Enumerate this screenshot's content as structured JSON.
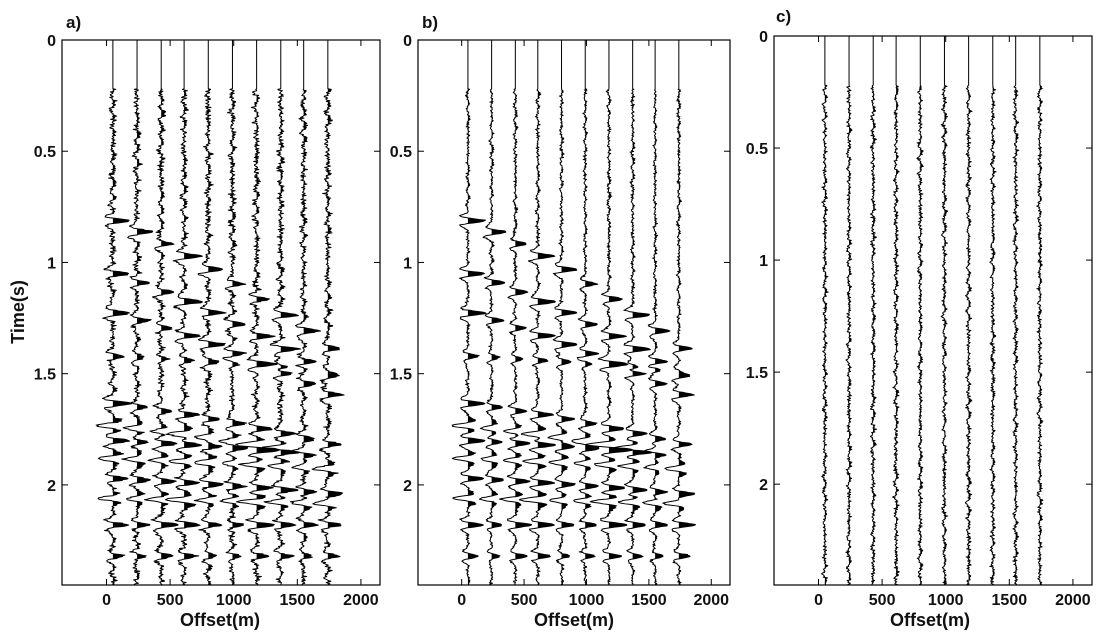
{
  "chart_data": [
    {
      "type": "seismic-wiggle",
      "panel_label": "a)",
      "xlabel": "Offset(m)",
      "ylabel": "Time(s)",
      "xlim": [
        -350,
        2150
      ],
      "ylim": [
        2.45,
        0
      ],
      "xticks": [
        {
          "value": 0,
          "label": "0"
        },
        {
          "value": 500,
          "label": "500"
        },
        {
          "value": 1000,
          "label": "1000"
        },
        {
          "value": 1500,
          "label": "1500"
        },
        {
          "value": 2000,
          "label": "2000"
        }
      ],
      "yticks": [
        {
          "value": 0,
          "label": "0"
        },
        {
          "value": 0.5,
          "label": "0.5"
        },
        {
          "value": 1,
          "label": "1"
        },
        {
          "value": 1.5,
          "label": "1.5"
        },
        {
          "value": 2,
          "label": "2"
        }
      ],
      "trace_offsets": [
        50,
        240,
        430,
        610,
        800,
        990,
        1180,
        1370,
        1550,
        1740
      ],
      "reflections": [
        {
          "t0": 0.8,
          "moveout": 0.00025,
          "amp": 1.0,
          "polarity": 1
        },
        {
          "t0": 1.04,
          "moveout": 0.0002,
          "amp": 1.0,
          "polarity": 1
        },
        {
          "t0": 1.22,
          "moveout": 0.00016,
          "amp": 1.0,
          "polarity": 1
        },
        {
          "t0": 1.42,
          "moveout": 3e-05,
          "amp": 0.6,
          "polarity": 1
        },
        {
          "t0": 1.63,
          "moveout": 8e-05,
          "amp": 0.9,
          "polarity": 1
        },
        {
          "t0": 1.73,
          "moveout": 6e-05,
          "amp": 0.9,
          "polarity": -1
        },
        {
          "t0": 1.8,
          "moveout": 3e-05,
          "amp": 1.0,
          "polarity": 1
        },
        {
          "t0": 1.88,
          "moveout": 2e-05,
          "amp": 0.9,
          "polarity": -1
        },
        {
          "t0": 1.97,
          "moveout": 3e-05,
          "amp": 1.0,
          "polarity": 1
        },
        {
          "t0": 2.06,
          "moveout": 1e-05,
          "amp": 1.0,
          "polarity": -1
        },
        {
          "t0": 2.18,
          "moveout": 0.0,
          "amp": 1.0,
          "polarity": 1
        },
        {
          "t0": 2.32,
          "moveout": 0.0,
          "amp": 0.7,
          "polarity": 1
        }
      ],
      "noise_level": 0.22,
      "signal_start": 0.22
    },
    {
      "type": "seismic-wiggle",
      "panel_label": "b)",
      "xlabel": "Offset(m)",
      "ylabel": "",
      "xlim": [
        -350,
        2150
      ],
      "ylim": [
        2.45,
        0
      ],
      "xticks": [
        {
          "value": 0,
          "label": "0"
        },
        {
          "value": 500,
          "label": "500"
        },
        {
          "value": 1000,
          "label": "1000"
        },
        {
          "value": 1500,
          "label": "1500"
        },
        {
          "value": 2000,
          "label": "2000"
        }
      ],
      "yticks": [
        {
          "value": 0,
          "label": "0"
        },
        {
          "value": 0.5,
          "label": "0.5"
        },
        {
          "value": 1,
          "label": "1"
        },
        {
          "value": 1.5,
          "label": "1.5"
        },
        {
          "value": 2,
          "label": "2"
        }
      ],
      "trace_offsets": [
        50,
        240,
        430,
        610,
        800,
        990,
        1180,
        1370,
        1550,
        1740
      ],
      "reflections": [
        {
          "t0": 0.8,
          "moveout": 0.00025,
          "amp": 1.0,
          "polarity": 1
        },
        {
          "t0": 1.04,
          "moveout": 0.0002,
          "amp": 1.0,
          "polarity": 1
        },
        {
          "t0": 1.22,
          "moveout": 0.00016,
          "amp": 1.0,
          "polarity": 1
        },
        {
          "t0": 1.42,
          "moveout": 3e-05,
          "amp": 0.6,
          "polarity": 1
        },
        {
          "t0": 1.63,
          "moveout": 8e-05,
          "amp": 0.9,
          "polarity": 1
        },
        {
          "t0": 1.73,
          "moveout": 6e-05,
          "amp": 0.9,
          "polarity": -1
        },
        {
          "t0": 1.8,
          "moveout": 3e-05,
          "amp": 1.0,
          "polarity": 1
        },
        {
          "t0": 1.88,
          "moveout": 2e-05,
          "amp": 0.9,
          "polarity": -1
        },
        {
          "t0": 1.97,
          "moveout": 3e-05,
          "amp": 1.0,
          "polarity": 1
        },
        {
          "t0": 2.06,
          "moveout": 1e-05,
          "amp": 1.0,
          "polarity": -1
        },
        {
          "t0": 2.18,
          "moveout": 0.0,
          "amp": 1.0,
          "polarity": 1
        },
        {
          "t0": 2.32,
          "moveout": 0.0,
          "amp": 0.7,
          "polarity": 1
        }
      ],
      "noise_level": 0.12,
      "signal_start": 0.22
    },
    {
      "type": "seismic-wiggle",
      "panel_label": "c)",
      "xlabel": "Offset(m)",
      "ylabel": "",
      "xlim": [
        -350,
        2150
      ],
      "ylim": [
        2.45,
        0
      ],
      "xticks": [
        {
          "value": 0,
          "label": "0"
        },
        {
          "value": 500,
          "label": "500"
        },
        {
          "value": 1000,
          "label": "1000"
        },
        {
          "value": 1500,
          "label": "1500"
        },
        {
          "value": 2000,
          "label": "2000"
        }
      ],
      "yticks": [
        {
          "value": 0,
          "label": "0"
        },
        {
          "value": 0.5,
          "label": "0.5"
        },
        {
          "value": 1,
          "label": "1"
        },
        {
          "value": 1.5,
          "label": "1.5"
        },
        {
          "value": 2,
          "label": "2"
        }
      ],
      "trace_offsets": [
        50,
        240,
        430,
        610,
        800,
        990,
        1180,
        1370,
        1550,
        1740
      ],
      "reflections": [],
      "noise_level": 0.14,
      "signal_start": 0.22
    }
  ]
}
